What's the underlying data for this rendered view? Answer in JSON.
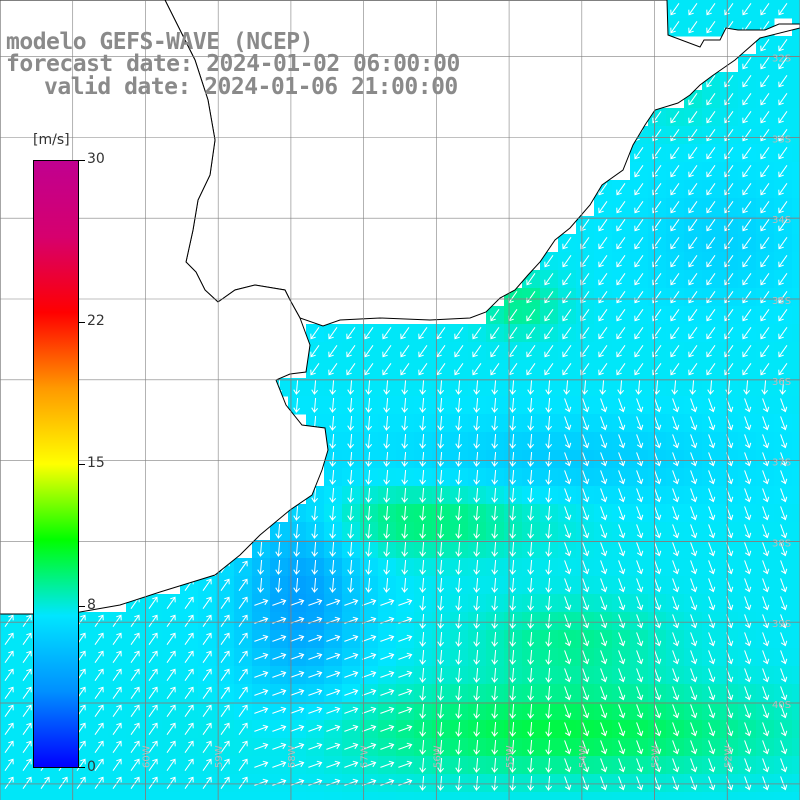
{
  "title": {
    "line1": "modelo GEFS-WAVE (NCEP)",
    "line2": "forecast date: 2024-01-02 06:00:00",
    "line3": "valid date: 2024-01-06 21:00:00"
  },
  "colorbar": {
    "units": "[m/s]",
    "ticks": [
      {
        "label": "30",
        "value": 30
      },
      {
        "label": "22",
        "value": 22
      },
      {
        "label": "15",
        "value": 15
      },
      {
        "label": "8",
        "value": 8
      },
      {
        "label": "0",
        "value": 0
      }
    ],
    "min": 0,
    "max": 30,
    "colors": [
      "#0000ff",
      "#0090ff",
      "#00e6ff",
      "#00ff00",
      "#ffff00",
      "#ff9900",
      "#ff0000",
      "#d6006e",
      "#c00090"
    ]
  },
  "map": {
    "lon_range": [
      -62,
      -51
    ],
    "lat_range": [
      -41.2,
      -31.3
    ],
    "grid_step_deg": 1,
    "lat_labels": [
      "32S",
      "33S",
      "34S",
      "35S",
      "36S",
      "37S",
      "38S",
      "39S",
      "40S"
    ],
    "lon_labels": [
      "61W",
      "60W",
      "59W",
      "58W",
      "57W",
      "56W",
      "55W",
      "54W",
      "53W",
      "52W"
    ],
    "colors": {
      "land": "#ffffff",
      "coast": "#000000",
      "grid": "#808080",
      "arrow": "#ffffff"
    }
  }
}
